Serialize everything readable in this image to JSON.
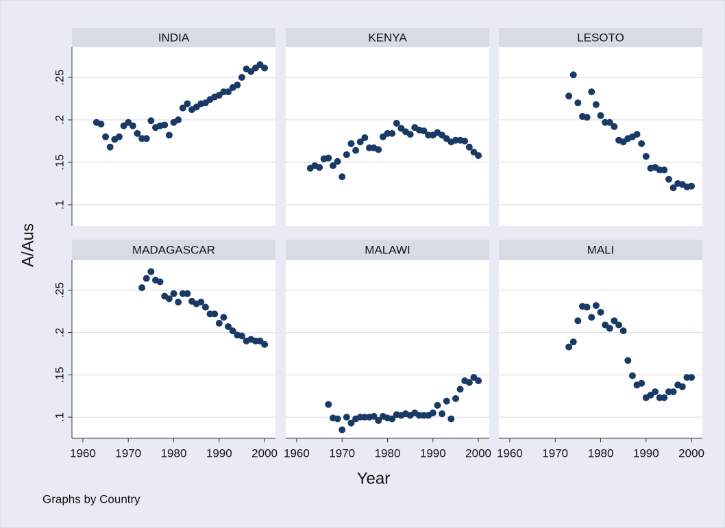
{
  "chart_data": {
    "type": "scatter",
    "ylabel": "A/Aus",
    "xlabel": "Year",
    "note": "Graphs by Country",
    "color": "#1a3a66",
    "xlim": [
      1957.6,
      2002.4
    ],
    "xticks": [
      1960,
      1970,
      1980,
      1990,
      2000
    ],
    "ylim": [
      0.075,
      0.2855
    ],
    "yticks": [
      {
        "value": 0.1,
        "label": ".1"
      },
      {
        "value": 0.15,
        "label": ".15"
      },
      {
        "value": 0.2,
        "label": ".2"
      },
      {
        "value": 0.25,
        "label": ".25"
      }
    ],
    "grid": true,
    "panels": [
      {
        "name": "INDIA",
        "x": [
          1963,
          1964,
          1965,
          1966,
          1967,
          1968,
          1969,
          1970,
          1971,
          1972,
          1973,
          1974,
          1975,
          1976,
          1977,
          1978,
          1979,
          1980,
          1981,
          1982,
          1983,
          1984,
          1985,
          1986,
          1987,
          1988,
          1989,
          1990,
          1991,
          1992,
          1993,
          1994,
          1995,
          1996,
          1997,
          1998,
          1999,
          2000
        ],
        "values": [
          0.197,
          0.195,
          0.18,
          0.168,
          0.177,
          0.18,
          0.193,
          0.197,
          0.193,
          0.184,
          0.178,
          0.178,
          0.199,
          0.191,
          0.193,
          0.194,
          0.182,
          0.197,
          0.2,
          0.214,
          0.219,
          0.212,
          0.215,
          0.219,
          0.22,
          0.224,
          0.227,
          0.229,
          0.233,
          0.233,
          0.238,
          0.241,
          0.25,
          0.26,
          0.257,
          0.261,
          0.265,
          0.261
        ]
      },
      {
        "name": "KENYA",
        "x": [
          1963,
          1964,
          1965,
          1966,
          1967,
          1968,
          1969,
          1970,
          1971,
          1972,
          1973,
          1974,
          1975,
          1976,
          1977,
          1978,
          1979,
          1980,
          1981,
          1982,
          1983,
          1984,
          1985,
          1986,
          1987,
          1988,
          1989,
          1990,
          1991,
          1992,
          1993,
          1994,
          1995,
          1996,
          1997,
          1998,
          1999,
          2000
        ],
        "values": [
          0.143,
          0.146,
          0.144,
          0.154,
          0.155,
          0.146,
          0.151,
          0.133,
          0.159,
          0.172,
          0.164,
          0.174,
          0.179,
          0.167,
          0.167,
          0.165,
          0.18,
          0.184,
          0.184,
          0.196,
          0.19,
          0.186,
          0.183,
          0.191,
          0.188,
          0.187,
          0.182,
          0.182,
          0.185,
          0.182,
          0.178,
          0.174,
          0.176,
          0.176,
          0.175,
          0.168,
          0.162,
          0.158
        ]
      },
      {
        "name": "LESOTO",
        "x": [
          1973,
          1974,
          1975,
          1976,
          1977,
          1978,
          1979,
          1980,
          1981,
          1982,
          1983,
          1984,
          1985,
          1986,
          1987,
          1988,
          1989,
          1990,
          1991,
          1992,
          1993,
          1994,
          1995,
          1996,
          1997,
          1998,
          1999,
          2000
        ],
        "values": [
          0.228,
          0.253,
          0.22,
          0.204,
          0.203,
          0.233,
          0.218,
          0.205,
          0.197,
          0.197,
          0.192,
          0.176,
          0.174,
          0.178,
          0.18,
          0.183,
          0.172,
          0.157,
          0.143,
          0.144,
          0.141,
          0.141,
          0.13,
          0.12,
          0.125,
          0.124,
          0.121,
          0.122
        ]
      },
      {
        "name": "MADAGASCAR",
        "x": [
          1973,
          1974,
          1975,
          1976,
          1977,
          1978,
          1979,
          1980,
          1981,
          1982,
          1983,
          1984,
          1985,
          1986,
          1987,
          1988,
          1989,
          1990,
          1991,
          1992,
          1993,
          1994,
          1995,
          1996,
          1997,
          1998,
          1999,
          2000
        ],
        "values": [
          0.253,
          0.264,
          0.272,
          0.262,
          0.26,
          0.243,
          0.24,
          0.246,
          0.236,
          0.246,
          0.246,
          0.237,
          0.234,
          0.236,
          0.23,
          0.222,
          0.222,
          0.211,
          0.218,
          0.207,
          0.202,
          0.197,
          0.196,
          0.19,
          0.192,
          0.19,
          0.19,
          0.186
        ]
      },
      {
        "name": "MALAWI",
        "x": [
          1967,
          1968,
          1969,
          1970,
          1971,
          1972,
          1973,
          1974,
          1975,
          1976,
          1977,
          1978,
          1979,
          1980,
          1981,
          1982,
          1983,
          1984,
          1985,
          1986,
          1987,
          1988,
          1989,
          1990,
          1991,
          1992,
          1993,
          1994,
          1995,
          1996,
          1997,
          1998,
          1999,
          2000
        ],
        "values": [
          0.115,
          0.099,
          0.098,
          0.085,
          0.1,
          0.093,
          0.098,
          0.1,
          0.1,
          0.1,
          0.101,
          0.096,
          0.101,
          0.099,
          0.098,
          0.103,
          0.102,
          0.104,
          0.102,
          0.105,
          0.102,
          0.102,
          0.102,
          0.105,
          0.114,
          0.104,
          0.119,
          0.098,
          0.122,
          0.133,
          0.143,
          0.141,
          0.147,
          0.143
        ]
      },
      {
        "name": "MALI",
        "x": [
          1973,
          1974,
          1975,
          1976,
          1977,
          1978,
          1979,
          1980,
          1981,
          1982,
          1983,
          1984,
          1985,
          1986,
          1987,
          1988,
          1989,
          1990,
          1991,
          1992,
          1993,
          1994,
          1995,
          1996,
          1997,
          1998,
          1999,
          2000
        ],
        "values": [
          0.183,
          0.189,
          0.214,
          0.231,
          0.23,
          0.218,
          0.232,
          0.224,
          0.209,
          0.205,
          0.214,
          0.209,
          0.202,
          0.167,
          0.149,
          0.138,
          0.14,
          0.123,
          0.126,
          0.13,
          0.123,
          0.123,
          0.13,
          0.13,
          0.138,
          0.136,
          0.147,
          0.147
        ]
      }
    ]
  }
}
